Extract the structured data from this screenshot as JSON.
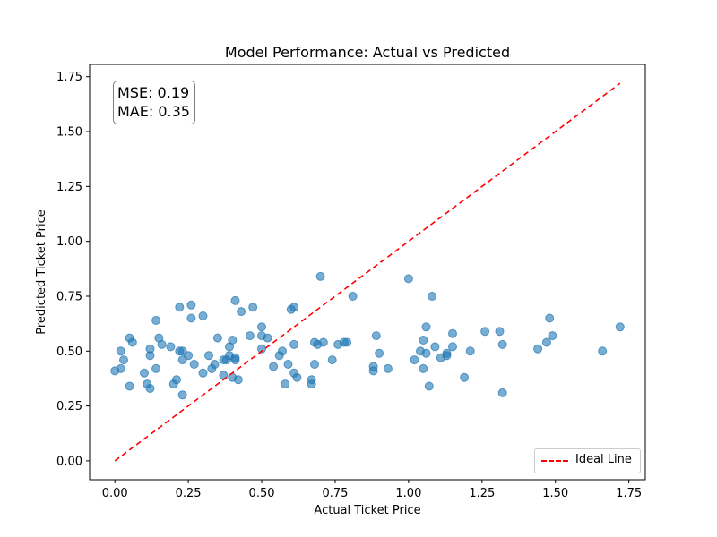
{
  "chart_data": {
    "type": "scatter",
    "title": "Model Performance: Actual vs Predicted",
    "xlabel": "Actual Ticket Price",
    "ylabel": "Predicted Ticket Price",
    "xlim": [
      -0.086,
      1.806
    ],
    "ylim": [
      -0.086,
      1.806
    ],
    "xticks": [
      0.0,
      0.25,
      0.5,
      0.75,
      1.0,
      1.25,
      1.5,
      1.75
    ],
    "yticks": [
      0.0,
      0.25,
      0.5,
      0.75,
      1.0,
      1.25,
      1.5,
      1.75
    ],
    "xtick_labels": [
      "0.00",
      "0.25",
      "0.50",
      "0.75",
      "1.00",
      "1.25",
      "1.50",
      "1.75"
    ],
    "ytick_labels": [
      "0.00",
      "0.25",
      "0.50",
      "0.75",
      "1.00",
      "1.25",
      "1.50",
      "1.75"
    ],
    "grid": false,
    "legend_position": "lower right",
    "colors": {
      "points": "#1f77b4",
      "ideal_line": "#ff0000"
    },
    "ideal_line": {
      "name": "Ideal Line",
      "x": [
        0.0,
        1.72
      ],
      "y": [
        0.0,
        1.72
      ]
    },
    "annotation": {
      "mse": "MSE: 0.19",
      "mae": "MAE: 0.35"
    },
    "points": [
      {
        "x": 0.0,
        "y": 0.41
      },
      {
        "x": 0.02,
        "y": 0.5
      },
      {
        "x": 0.03,
        "y": 0.46
      },
      {
        "x": 0.02,
        "y": 0.42
      },
      {
        "x": 0.05,
        "y": 0.56
      },
      {
        "x": 0.06,
        "y": 0.54
      },
      {
        "x": 0.05,
        "y": 0.34
      },
      {
        "x": 0.1,
        "y": 0.4
      },
      {
        "x": 0.11,
        "y": 0.35
      },
      {
        "x": 0.12,
        "y": 0.51
      },
      {
        "x": 0.12,
        "y": 0.48
      },
      {
        "x": 0.12,
        "y": 0.33
      },
      {
        "x": 0.14,
        "y": 0.64
      },
      {
        "x": 0.15,
        "y": 0.56
      },
      {
        "x": 0.16,
        "y": 0.53
      },
      {
        "x": 0.14,
        "y": 0.42
      },
      {
        "x": 0.19,
        "y": 0.52
      },
      {
        "x": 0.2,
        "y": 0.35
      },
      {
        "x": 0.21,
        "y": 0.37
      },
      {
        "x": 0.22,
        "y": 0.7
      },
      {
        "x": 0.22,
        "y": 0.5
      },
      {
        "x": 0.23,
        "y": 0.5
      },
      {
        "x": 0.23,
        "y": 0.46
      },
      {
        "x": 0.23,
        "y": 0.3
      },
      {
        "x": 0.25,
        "y": 0.48
      },
      {
        "x": 0.26,
        "y": 0.65
      },
      {
        "x": 0.26,
        "y": 0.71
      },
      {
        "x": 0.27,
        "y": 0.44
      },
      {
        "x": 0.3,
        "y": 0.66
      },
      {
        "x": 0.3,
        "y": 0.4
      },
      {
        "x": 0.32,
        "y": 0.48
      },
      {
        "x": 0.33,
        "y": 0.42
      },
      {
        "x": 0.34,
        "y": 0.44
      },
      {
        "x": 0.35,
        "y": 0.56
      },
      {
        "x": 0.37,
        "y": 0.46
      },
      {
        "x": 0.38,
        "y": 0.46
      },
      {
        "x": 0.37,
        "y": 0.39
      },
      {
        "x": 0.39,
        "y": 0.48
      },
      {
        "x": 0.39,
        "y": 0.52
      },
      {
        "x": 0.4,
        "y": 0.38
      },
      {
        "x": 0.4,
        "y": 0.55
      },
      {
        "x": 0.41,
        "y": 0.46
      },
      {
        "x": 0.41,
        "y": 0.47
      },
      {
        "x": 0.41,
        "y": 0.73
      },
      {
        "x": 0.42,
        "y": 0.37
      },
      {
        "x": 0.43,
        "y": 0.68
      },
      {
        "x": 0.46,
        "y": 0.57
      },
      {
        "x": 0.47,
        "y": 0.7
      },
      {
        "x": 0.5,
        "y": 0.57
      },
      {
        "x": 0.5,
        "y": 0.61
      },
      {
        "x": 0.5,
        "y": 0.51
      },
      {
        "x": 0.52,
        "y": 0.56
      },
      {
        "x": 0.54,
        "y": 0.43
      },
      {
        "x": 0.56,
        "y": 0.48
      },
      {
        "x": 0.57,
        "y": 0.5
      },
      {
        "x": 0.58,
        "y": 0.35
      },
      {
        "x": 0.59,
        "y": 0.44
      },
      {
        "x": 0.6,
        "y": 0.69
      },
      {
        "x": 0.61,
        "y": 0.7
      },
      {
        "x": 0.61,
        "y": 0.4
      },
      {
        "x": 0.61,
        "y": 0.53
      },
      {
        "x": 0.62,
        "y": 0.38
      },
      {
        "x": 0.67,
        "y": 0.35
      },
      {
        "x": 0.67,
        "y": 0.37
      },
      {
        "x": 0.68,
        "y": 0.54
      },
      {
        "x": 0.69,
        "y": 0.53
      },
      {
        "x": 0.68,
        "y": 0.44
      },
      {
        "x": 0.7,
        "y": 0.84
      },
      {
        "x": 0.71,
        "y": 0.54
      },
      {
        "x": 0.74,
        "y": 0.46
      },
      {
        "x": 0.76,
        "y": 0.53
      },
      {
        "x": 0.78,
        "y": 0.54
      },
      {
        "x": 0.79,
        "y": 0.54
      },
      {
        "x": 0.81,
        "y": 0.75
      },
      {
        "x": 0.88,
        "y": 0.43
      },
      {
        "x": 0.88,
        "y": 0.41
      },
      {
        "x": 0.89,
        "y": 0.57
      },
      {
        "x": 0.9,
        "y": 0.49
      },
      {
        "x": 0.93,
        "y": 0.42
      },
      {
        "x": 1.0,
        "y": 0.83
      },
      {
        "x": 1.02,
        "y": 0.46
      },
      {
        "x": 1.04,
        "y": 0.5
      },
      {
        "x": 1.05,
        "y": 0.55
      },
      {
        "x": 1.05,
        "y": 0.42
      },
      {
        "x": 1.06,
        "y": 0.49
      },
      {
        "x": 1.06,
        "y": 0.61
      },
      {
        "x": 1.07,
        "y": 0.34
      },
      {
        "x": 1.08,
        "y": 0.75
      },
      {
        "x": 1.09,
        "y": 0.52
      },
      {
        "x": 1.11,
        "y": 0.47
      },
      {
        "x": 1.13,
        "y": 0.48
      },
      {
        "x": 1.13,
        "y": 0.49
      },
      {
        "x": 1.15,
        "y": 0.52
      },
      {
        "x": 1.15,
        "y": 0.58
      },
      {
        "x": 1.19,
        "y": 0.38
      },
      {
        "x": 1.21,
        "y": 0.5
      },
      {
        "x": 1.26,
        "y": 0.59
      },
      {
        "x": 1.31,
        "y": 0.59
      },
      {
        "x": 1.32,
        "y": 0.53
      },
      {
        "x": 1.32,
        "y": 0.31
      },
      {
        "x": 1.44,
        "y": 0.51
      },
      {
        "x": 1.47,
        "y": 0.54
      },
      {
        "x": 1.48,
        "y": 0.65
      },
      {
        "x": 1.49,
        "y": 0.57
      },
      {
        "x": 1.66,
        "y": 0.5
      },
      {
        "x": 1.72,
        "y": 0.61
      }
    ]
  }
}
